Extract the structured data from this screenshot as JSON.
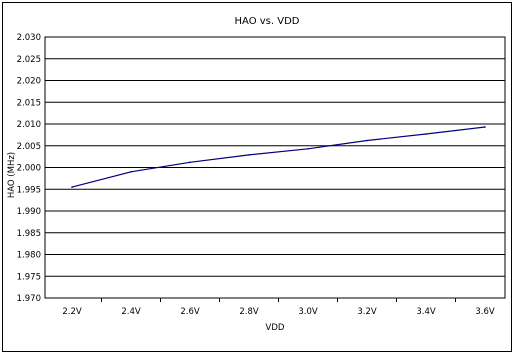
{
  "chart_data": {
    "type": "line",
    "title": "HAO vs. VDD",
    "xlabel": "VDD",
    "ylabel": "HAO (MHz)",
    "categories": [
      "2.2V",
      "2.4V",
      "2.6V",
      "2.8V",
      "3.0V",
      "3.2V",
      "3.4V",
      "3.6V"
    ],
    "series": [
      {
        "name": "",
        "values": [
          1.9955,
          1.999,
          2.0012,
          2.0029,
          2.0043,
          2.0062,
          2.0077,
          2.0093
        ],
        "color": "#000080"
      }
    ],
    "ylim": [
      1.97,
      2.03
    ],
    "yticks": [
      "1.970",
      "1.975",
      "1.980",
      "1.985",
      "1.990",
      "1.995",
      "2.000",
      "2.005",
      "2.010",
      "2.015",
      "2.020",
      "2.025",
      "2.030"
    ],
    "grid": "horizontal",
    "legend": "none"
  }
}
